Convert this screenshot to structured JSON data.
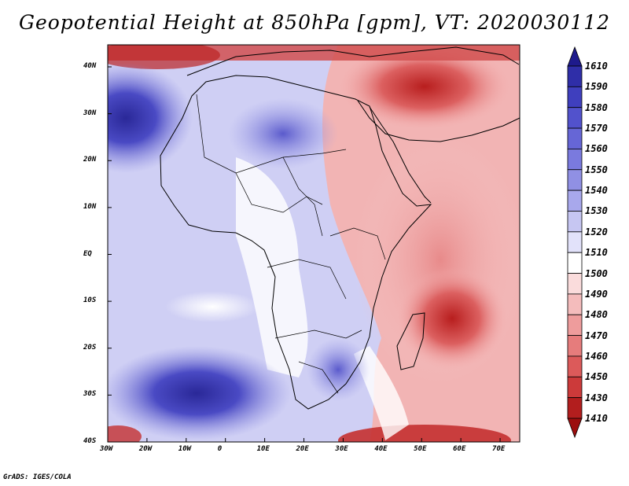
{
  "title": "Geopotential Height at 850hPa [gpm], VT: 2020030112",
  "credit": "GrADS: IGES/COLA",
  "map": {
    "lon_labels": [
      "30W",
      "20W",
      "10W",
      "0",
      "10E",
      "20E",
      "30E",
      "40E",
      "50E",
      "60E",
      "70E"
    ],
    "lat_labels": [
      "40N",
      "30N",
      "20N",
      "10N",
      "EQ",
      "10S",
      "20S",
      "30S",
      "40S"
    ]
  },
  "colorbar": {
    "levels": [
      "1610",
      "1590",
      "1580",
      "1570",
      "1560",
      "1550",
      "1540",
      "1530",
      "1520",
      "1510",
      "1500",
      "1490",
      "1480",
      "1470",
      "1460",
      "1450",
      "1430",
      "1410"
    ],
    "colors": [
      "#1e1a8c",
      "#2f2ea8",
      "#3f3fbe",
      "#5252cc",
      "#6666d6",
      "#7a7ade",
      "#9090e4",
      "#a8a8ec",
      "#c6c6f2",
      "#e2e2fa",
      "#ffffff",
      "#fadcdc",
      "#f4bcbc",
      "#ee9c9c",
      "#e67c7c",
      "#dc5a5a",
      "#cc3a3a",
      "#b21e1e",
      "#9c0e0e"
    ]
  }
}
